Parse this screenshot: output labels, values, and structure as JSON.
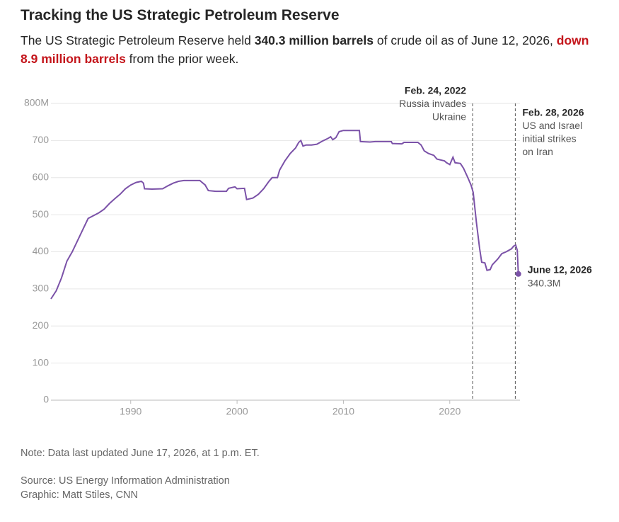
{
  "chart_data": {
    "type": "line",
    "title": "Tracking the US Strategic Petroleum Reserve",
    "subtitle": [
      {
        "text": "The US Strategic Petroleum Reserve held ",
        "style": "plain"
      },
      {
        "text": "340.3 million barrels",
        "style": "bold"
      },
      {
        "text": " of crude oil as of June 12, 2026, ",
        "style": "plain"
      },
      {
        "text": "down 8.9 million barrels",
        "style": "red"
      },
      {
        "text": " from the prior week.",
        "style": "plain"
      }
    ],
    "color": "#7b52a8",
    "x": [
      1982.5,
      1983.0,
      1983.5,
      1984.0,
      1984.5,
      1985.0,
      1985.5,
      1986.0,
      1987.0,
      1987.5,
      1988.0,
      1988.5,
      1989.0,
      1989.5,
      1990.0,
      1990.5,
      1991.0,
      1991.2,
      1991.3,
      1992.0,
      1993.0,
      1993.5,
      1994.0,
      1994.5,
      1995.0,
      1996.5,
      1997.0,
      1997.3,
      1998.0,
      1999.0,
      1999.2,
      1999.8,
      2000.0,
      2000.7,
      2000.9,
      2001.5,
      2002.0,
      2002.5,
      2003.0,
      2003.3,
      2003.8,
      2004.0,
      2004.5,
      2005.0,
      2005.5,
      2005.8,
      2006.0,
      2006.2,
      2006.5,
      2007.0,
      2007.5,
      2008.0,
      2008.5,
      2008.8,
      2009.0,
      2009.3,
      2009.6,
      2010.0,
      2011.5,
      2011.6,
      2012.5,
      2013.0,
      2014.5,
      2014.6,
      2015.5,
      2015.7,
      2017.0,
      2017.3,
      2017.6,
      2018.0,
      2018.5,
      2018.8,
      2019.5,
      2019.7,
      2020.0,
      2020.3,
      2020.5,
      2021.0,
      2021.3,
      2021.7,
      2022.0,
      2022.2,
      2022.5,
      2022.8,
      2023.0,
      2023.3,
      2023.5,
      2023.8,
      2024.0,
      2024.5,
      2024.9,
      2025.3,
      2025.8,
      2026.0,
      2026.2,
      2026.35,
      2026.45
    ],
    "values": [
      273,
      295,
      330,
      375,
      400,
      430,
      460,
      490,
      505,
      515,
      530,
      543,
      555,
      570,
      580,
      587,
      590,
      585,
      570,
      569,
      570,
      578,
      585,
      590,
      592,
      592,
      580,
      565,
      563,
      563,
      571,
      575,
      570,
      571,
      541,
      545,
      555,
      570,
      590,
      600,
      600,
      620,
      645,
      665,
      680,
      695,
      700,
      685,
      688,
      688,
      690,
      698,
      705,
      710,
      702,
      708,
      724,
      727,
      727,
      697,
      696,
      697,
      697,
      692,
      691,
      695,
      695,
      688,
      672,
      665,
      660,
      650,
      645,
      640,
      635,
      655,
      640,
      638,
      625,
      600,
      580,
      560,
      480,
      410,
      372,
      370,
      350,
      352,
      365,
      380,
      395,
      400,
      408,
      415,
      418,
      404,
      340.3
    ],
    "xlim": [
      1982.5,
      2026.6
    ],
    "ylim": [
      0,
      800
    ],
    "xticks": [
      1990,
      2000,
      2010,
      2020
    ],
    "yticks": [
      0,
      100,
      200,
      300,
      400,
      500,
      600,
      700,
      {
        "value": 800,
        "label": "800M"
      }
    ],
    "grid": true,
    "annotations": [
      {
        "x": 2022.15,
        "label": "Feb. 24, 2022",
        "lines": [
          "Russia invades",
          "Ukraine"
        ]
      },
      {
        "x": 2026.16,
        "label": "Feb. 28, 2026",
        "lines": [
          "US and Israel",
          "initial strikes",
          "on Iran"
        ]
      }
    ],
    "end_label": {
      "label": "June 12, 2026",
      "value_label": "340.3M"
    },
    "note": "Note: Data last updated June 17, 2026, at 1 p.m. ET.",
    "source": "Source: US Energy Information Administration",
    "credit": "Graphic: Matt Stiles, CNN"
  }
}
